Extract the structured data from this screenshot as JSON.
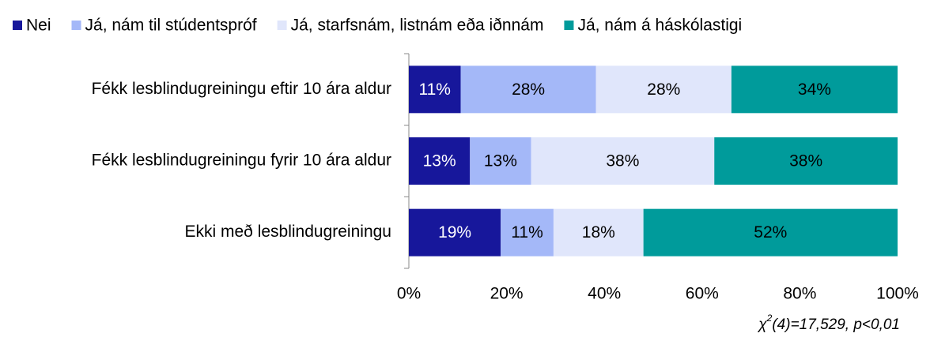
{
  "chart_data": {
    "type": "stacked_barh",
    "categories": [
      "Fékk lesblindugreiningu eftir 10 ára aldur",
      "Fékk lesblindugreiningu fyrir 10 ára aldur",
      "Ekki með lesblindugreiningu"
    ],
    "series": [
      {
        "name": "Nei",
        "color": "#17179b",
        "values": [
          10.6,
          12.5,
          18.8
        ],
        "value_labels": [
          "11%",
          "13%",
          "19%"
        ]
      },
      {
        "name": "Já, nám til stúdentspróf",
        "color": "#a4b8f8",
        "values": [
          27.7,
          12.5,
          10.8
        ],
        "value_labels": [
          "28%",
          "13%",
          "11%"
        ]
      },
      {
        "name": "Já, starfsnám, listnám eða iðnnám",
        "color": "#e0e6fb",
        "values": [
          27.7,
          37.5,
          18.4
        ],
        "value_labels": [
          "28%",
          "38%",
          "18%"
        ]
      },
      {
        "name": "Já, nám á háskólastigi",
        "color": "#009b9b",
        "values": [
          34.0,
          37.5,
          52.0
        ],
        "value_labels": [
          "34%",
          "38%",
          "52%"
        ]
      }
    ],
    "xlim": [
      0,
      100
    ],
    "xticks": [
      {
        "value": 0,
        "label": "0%"
      },
      {
        "value": 20,
        "label": "20%"
      },
      {
        "value": 40,
        "label": "40%"
      },
      {
        "value": 60,
        "label": "60%"
      },
      {
        "value": 80,
        "label": "80%"
      },
      {
        "value": 100,
        "label": "100%"
      }
    ],
    "annotation": [
      "χ",
      "2",
      "(4)=17,529,  p<0,01"
    ],
    "legend": "top"
  }
}
